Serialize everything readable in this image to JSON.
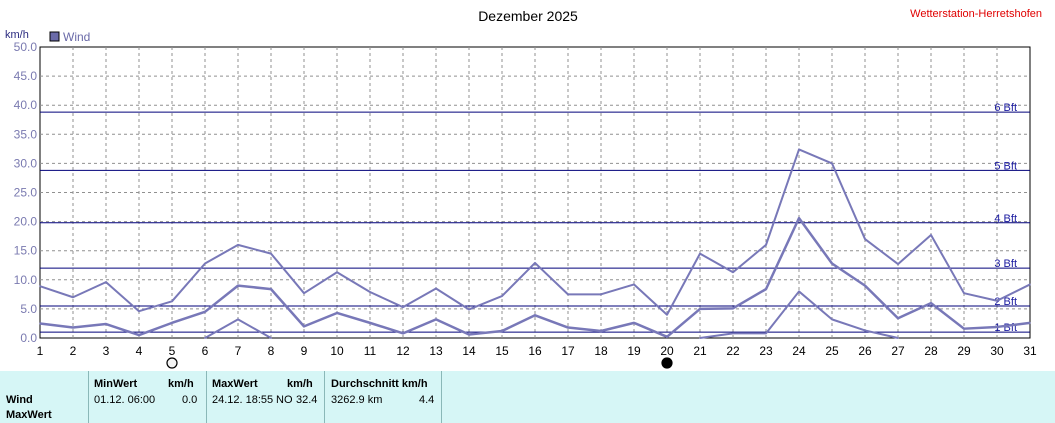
{
  "chart_data": {
    "type": "line",
    "title": "Dezember 2025",
    "station": "Wetterstation-Herretshofen",
    "ylabel": "km/h",
    "ylim": [
      0,
      50
    ],
    "yticks": [
      "0.0",
      "5.0",
      "10.0",
      "15.0",
      "20.0",
      "25.0",
      "30.0",
      "35.0",
      "40.0",
      "45.0",
      "50.0"
    ],
    "ytick_values": [
      0,
      5,
      10,
      15,
      20,
      25,
      30,
      35,
      40,
      45,
      50
    ],
    "x": [
      1,
      2,
      3,
      4,
      5,
      6,
      7,
      8,
      9,
      10,
      11,
      12,
      13,
      14,
      15,
      16,
      17,
      18,
      19,
      20,
      21,
      22,
      23,
      24,
      25,
      26,
      27,
      28,
      29,
      30,
      31
    ],
    "xticks": [
      "1",
      "2",
      "3",
      "4",
      "5",
      "6",
      "7",
      "8",
      "9",
      "10",
      "11",
      "12",
      "13",
      "14",
      "15",
      "16",
      "17",
      "18",
      "19",
      "20",
      "21",
      "22",
      "23",
      "24",
      "25",
      "26",
      "27",
      "28",
      "29",
      "30",
      "31"
    ],
    "grid": true,
    "legend": {
      "label": "Wind",
      "placement": "top-left"
    },
    "series_color": "#7878b8",
    "thresholds_color": "#00007a",
    "series": [
      {
        "name": "Wind",
        "values": [
          2.5,
          1.8,
          2.4,
          0.5,
          2.6,
          4.5,
          9.0,
          8.4,
          2.0,
          4.3,
          2.6,
          0.8,
          3.2,
          0.6,
          1.2,
          3.9,
          1.8,
          1.2,
          2.6,
          0.2,
          5.0,
          5.1,
          8.4,
          20.6,
          12.8,
          9.0,
          3.4,
          6.0,
          1.6,
          1.9,
          2.6
        ]
      },
      {
        "name": "MaxWert",
        "values": [
          8.9,
          7.0,
          9.6,
          4.6,
          6.3,
          12.8,
          16.0,
          14.5,
          7.7,
          11.3,
          7.9,
          5.3,
          8.5,
          4.9,
          7.2,
          12.9,
          7.5,
          7.5,
          9.2,
          4.0,
          14.5,
          11.3,
          16.0,
          32.4,
          30.0,
          17.0,
          12.7,
          17.7,
          7.7,
          6.4,
          9.2
        ]
      },
      {
        "name": "MinWert",
        "values": [
          null,
          null,
          null,
          null,
          null,
          0.0,
          3.2,
          0.0,
          null,
          null,
          null,
          null,
          null,
          null,
          null,
          null,
          null,
          null,
          null,
          null,
          0.0,
          0.8,
          0.8,
          8.0,
          3.2,
          1.3,
          0.0,
          null,
          null,
          null,
          null
        ]
      }
    ],
    "beaufort": [
      {
        "label": "1 Bft",
        "value": 1
      },
      {
        "label": "2 Bft",
        "value": 5.5
      },
      {
        "label": "3 Bft",
        "value": 12
      },
      {
        "label": "4 Bft",
        "value": 19.8
      },
      {
        "label": "5 Bft",
        "value": 28.8
      },
      {
        "label": "6 Bft",
        "value": 38.8
      }
    ],
    "moon_phases": [
      {
        "day": 5,
        "phase": "full"
      },
      {
        "day": 20,
        "phase": "new"
      }
    ]
  },
  "stats": {
    "row_labels": [
      "Wind",
      "MaxWert"
    ],
    "min_header": "MinWert",
    "min_unit": "km/h",
    "min_time": "01.12.  06:00",
    "min_value": "0.0",
    "max_header": "MaxWert",
    "max_unit": "km/h",
    "max_time": "24.12.  18:55",
    "max_dir": "NO",
    "max_value": "32.4",
    "avg_header": "Durchschnitt km/h",
    "avg_distance": "3262.9 km",
    "avg_value": "4.4"
  }
}
